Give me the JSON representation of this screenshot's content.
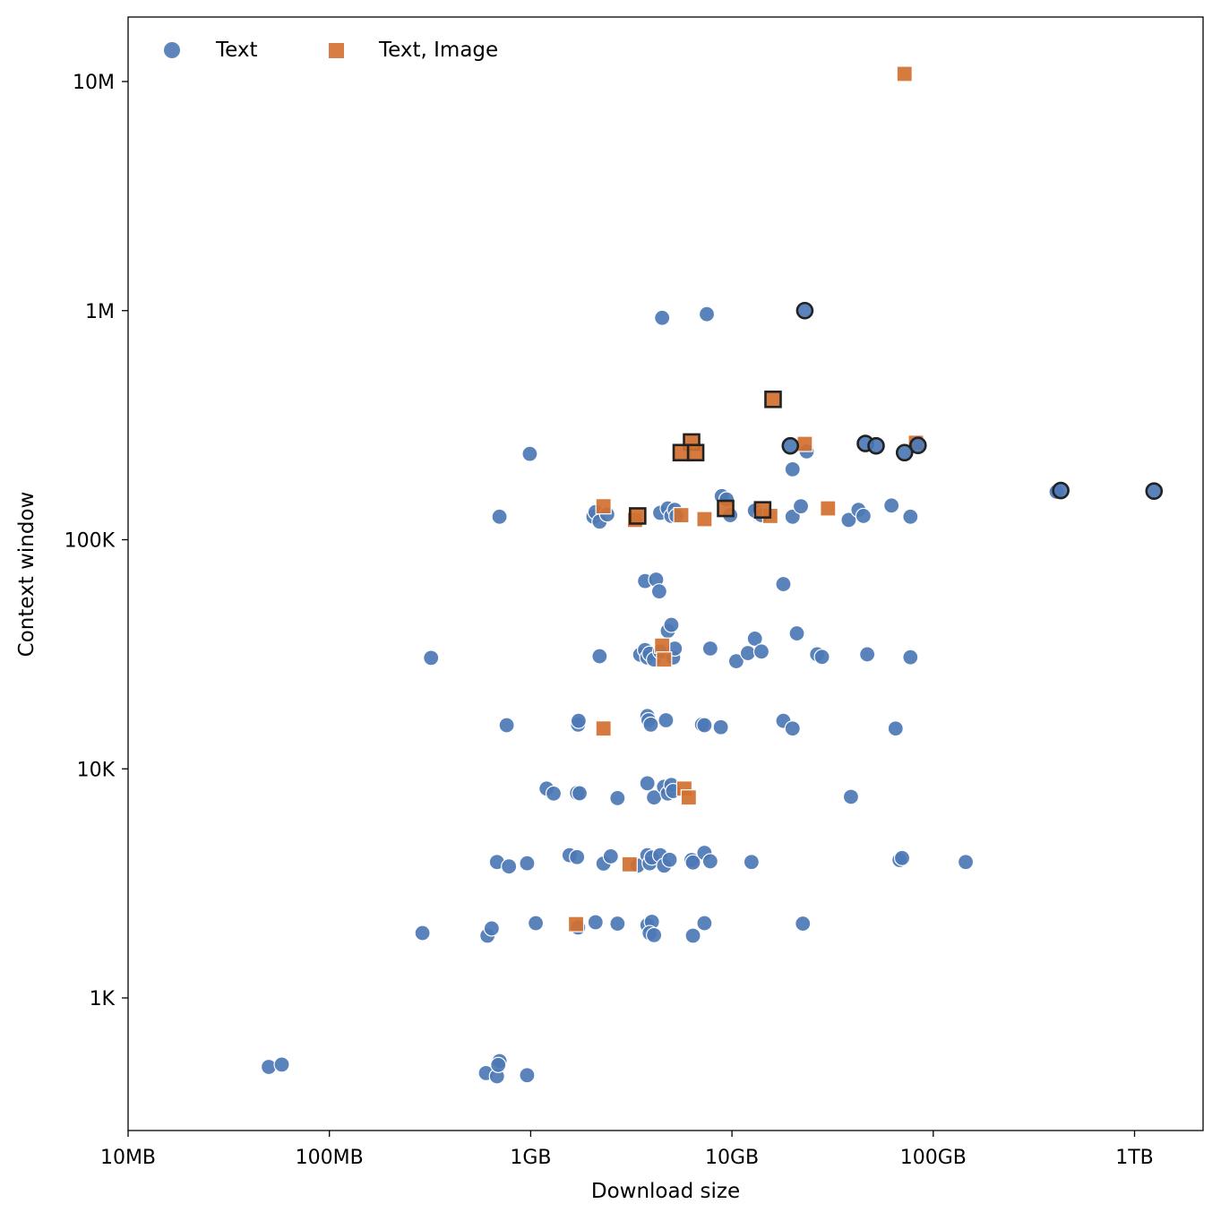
{
  "chart_data": {
    "type": "scatter",
    "title": "",
    "xlabel": "Download size",
    "ylabel": "Context window",
    "x_scale": "log",
    "y_scale": "log",
    "xlim": [
      "10MB",
      "2.2TB"
    ],
    "ylim": [
      300,
      18000000
    ],
    "x_ticks": [
      {
        "value": 10,
        "label": "10MB"
      },
      {
        "value": 100,
        "label": "100MB"
      },
      {
        "value": 1000,
        "label": "1GB"
      },
      {
        "value": 10000,
        "label": "10GB"
      },
      {
        "value": 100000,
        "label": "100GB"
      },
      {
        "value": 1000000,
        "label": "1TB"
      }
    ],
    "y_ticks": [
      {
        "value": 1000,
        "label": "1K"
      },
      {
        "value": 10000,
        "label": "10K"
      },
      {
        "value": 100000,
        "label": "100K"
      },
      {
        "value": 1000000,
        "label": "1M"
      },
      {
        "value": 10000000,
        "label": "10M"
      }
    ],
    "x_units_note_hidden": "",
    "legend_position": "top-left",
    "grid": false,
    "series": [
      {
        "name": "Text",
        "marker": "circle",
        "color": "#4c78b5",
        "points": [
          [
            50,
            500
          ],
          [
            58,
            512
          ],
          [
            600,
            470
          ],
          [
            680,
            455
          ],
          [
            700,
            530
          ],
          [
            960,
            460
          ],
          [
            690,
            510
          ],
          [
            290,
            1920
          ],
          [
            610,
            1870
          ],
          [
            640,
            2010
          ],
          [
            1060,
            2120
          ],
          [
            1720,
            2030
          ],
          [
            2100,
            2140
          ],
          [
            2700,
            2110
          ],
          [
            3800,
            2080
          ],
          [
            4000,
            2150
          ],
          [
            3900,
            1920
          ],
          [
            4100,
            1880
          ],
          [
            6400,
            1870
          ],
          [
            7300,
            2120
          ],
          [
            22500,
            2110
          ],
          [
            680,
            3920
          ],
          [
            780,
            3750
          ],
          [
            960,
            3870
          ],
          [
            1560,
            4200
          ],
          [
            1700,
            4120
          ],
          [
            2300,
            3860
          ],
          [
            2500,
            4150
          ],
          [
            3400,
            3780
          ],
          [
            3800,
            4200
          ],
          [
            3900,
            3870
          ],
          [
            4000,
            4100
          ],
          [
            4400,
            4200
          ],
          [
            4600,
            3780
          ],
          [
            4900,
            4010
          ],
          [
            6300,
            4000
          ],
          [
            6400,
            3900
          ],
          [
            7300,
            4300
          ],
          [
            7800,
            3950
          ],
          [
            12500,
            3920
          ],
          [
            68000,
            4000
          ],
          [
            70000,
            4080
          ],
          [
            145000,
            3920
          ],
          [
            1200,
            8200
          ],
          [
            1300,
            7800
          ],
          [
            1700,
            7850
          ],
          [
            1750,
            7820
          ],
          [
            2700,
            7450
          ],
          [
            3800,
            8650
          ],
          [
            4100,
            7500
          ],
          [
            4600,
            8350
          ],
          [
            4800,
            7800
          ],
          [
            5000,
            8500
          ],
          [
            5100,
            8000
          ],
          [
            39000,
            7550
          ],
          [
            760,
            15500
          ],
          [
            1720,
            15600
          ],
          [
            1730,
            16200
          ],
          [
            3800,
            17000
          ],
          [
            3850,
            16300
          ],
          [
            3950,
            15600
          ],
          [
            4700,
            16300
          ],
          [
            7100,
            15600
          ],
          [
            7300,
            15500
          ],
          [
            8800,
            15200
          ],
          [
            18000,
            16200
          ],
          [
            20000,
            15000
          ],
          [
            65000,
            15000
          ],
          [
            320,
            30500
          ],
          [
            2200,
            31000
          ],
          [
            3500,
            31500
          ],
          [
            3700,
            33000
          ],
          [
            3800,
            30600
          ],
          [
            3900,
            31800
          ],
          [
            4100,
            30000
          ],
          [
            4400,
            32500
          ],
          [
            4800,
            40000
          ],
          [
            5000,
            42500
          ],
          [
            5100,
            30600
          ],
          [
            5200,
            33500
          ],
          [
            7800,
            33500
          ],
          [
            10500,
            29500
          ],
          [
            12000,
            32000
          ],
          [
            13000,
            37000
          ],
          [
            14000,
            32500
          ],
          [
            21000,
            39000
          ],
          [
            26500,
            31600
          ],
          [
            28000,
            30800
          ],
          [
            47000,
            31600
          ],
          [
            77000,
            30700
          ],
          [
            3700,
            66000
          ],
          [
            4200,
            67000
          ],
          [
            4350,
            59500
          ],
          [
            18000,
            64000
          ],
          [
            700,
            126000
          ],
          [
            2050,
            126000
          ],
          [
            2100,
            132000
          ],
          [
            2200,
            120000
          ],
          [
            2400,
            129000
          ],
          [
            4400,
            131000
          ],
          [
            4800,
            137000
          ],
          [
            5000,
            127000
          ],
          [
            5200,
            135000
          ],
          [
            5300,
            127000
          ],
          [
            8900,
            155000
          ],
          [
            9400,
            150000
          ],
          [
            9800,
            128000
          ],
          [
            13000,
            134000
          ],
          [
            14000,
            128000
          ],
          [
            20000,
            126000
          ],
          [
            22000,
            140000
          ],
          [
            38000,
            122000
          ],
          [
            42500,
            135000
          ],
          [
            45000,
            127000
          ],
          [
            62000,
            141000
          ],
          [
            77000,
            126000
          ],
          [
            410000,
            162000
          ],
          [
            990,
            237000
          ],
          [
            20000,
            203000
          ],
          [
            23500,
            243000
          ],
          [
            4500,
            930000
          ],
          [
            7500,
            965000
          ]
        ],
        "highlighted_points": [
          [
            23000,
            1000000
          ],
          [
            19500,
            257000
          ],
          [
            46000,
            263000
          ],
          [
            52000,
            257000
          ],
          [
            72000,
            240000
          ],
          [
            84000,
            258000
          ],
          [
            430000,
            164000
          ],
          [
            1250000,
            163000
          ]
        ]
      },
      {
        "name": "Text, Image",
        "marker": "square",
        "color": "#d2702f",
        "points": [
          [
            72000,
            10800000
          ],
          [
            23000,
            262000
          ],
          [
            82000,
            265000
          ],
          [
            2300,
            140000
          ],
          [
            3300,
            122000
          ],
          [
            5600,
            128000
          ],
          [
            7300,
            123000
          ],
          [
            15500,
            127000
          ],
          [
            30000,
            137000
          ],
          [
            4500,
            34500
          ],
          [
            4600,
            30000
          ],
          [
            2300,
            15000
          ],
          [
            5800,
            8200
          ],
          [
            6100,
            7500
          ],
          [
            3100,
            3830
          ],
          [
            1680,
            2100
          ]
        ],
        "highlighted_points": [
          [
            16000,
            410000
          ],
          [
            6300,
            267000
          ],
          [
            5600,
            240000
          ],
          [
            6600,
            240000
          ],
          [
            3400,
            127000
          ],
          [
            9300,
            137000
          ],
          [
            14200,
            135000
          ]
        ]
      }
    ]
  }
}
